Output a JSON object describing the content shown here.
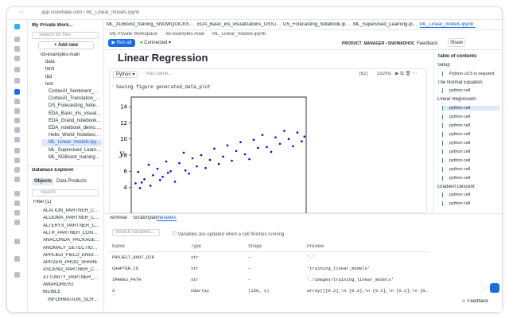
{
  "browser": {
    "url": "app.snowflake.com",
    "path": "/ ML_Linear_models.ipynb"
  },
  "sidebar": {
    "workspace": "My Private Work...",
    "search": "Search for files",
    "add_new": "+ Add new",
    "tree": [
      "nb-examples-main",
      "data",
      "html",
      "tbd",
      "test",
      "CortexAI_Sentiment_Anal...",
      "CortexAI_Translation_SNO...",
      "DS_Forecasting_Notebo...",
      "EDA_Basic_iris_visualization...",
      "EDA_Grand_notebook_170c...",
      "EDA_notebook_demo.ipynb",
      "Hello_World_Notebook.ipy...",
      "ML_Linear_models.ipynb",
      "ML_Supervised_Learning.i...",
      "ML_XGBoost_training_SNO..."
    ],
    "selected": 12,
    "database_explorer": "Database Explorer",
    "db_tabs": [
      "Objects",
      "Data Products"
    ],
    "db_search": "Search",
    "filter": "Filter (1)",
    "databases": [
      "ALATION_PARTNER_CONN...",
      "ALOOMA_PARTNER_CONN...",
      "ALTERYX_PARTNER_CONN...",
      "ALTR_PARTNER_CONNECT",
      "ANACONDA_PACKAGE_SH...",
      "ANOMALY_DETECTION_APP",
      "APPLIED_FIELD_ENGINEER...",
      "APPZEN_PROD_SHARE",
      "ASCEND_PARTNER_CONN...",
      "ATTUNITY_PARTNER_CONN...",
      "AWARDREVU",
      "BIZIBLE",
      "INFORMATION_SCHEMA"
    ]
  },
  "tabs": [
    "ML_XGBoost_training_SNOWQUICKSTART.ipy",
    "EDA_Basic_iris_visualizations_OSS.ipynb",
    "DS_Forecasting_Notebook.ipynb",
    "ML_Supervised_Learning.ipynb",
    "ML_Linear_models.ipynb"
  ],
  "breadcrumb": [
    "My Private Workspace",
    "nb-examples-main",
    "ML_Linear_models.ipynb"
  ],
  "header": {
    "role": "PRODUCT_MANAGER • SNOWADHOC",
    "feedback": "Feedback",
    "share": "Share",
    "run_all": "Run all",
    "connected": "Connected"
  },
  "notebook": {
    "heading": "Linear Regression",
    "language": "Python",
    "name_placeholder": "Add name...",
    "exec_count": "[62]",
    "duration": "332ms",
    "output": "Saving figure generated_data_plot"
  },
  "plot": {
    "type": "scatter",
    "ylabel": "y",
    "color": "#0000ee",
    "xlim": [
      0,
      2
    ],
    "ylim": [
      0,
      15.2
    ],
    "yticks": [
      4,
      6,
      8,
      10,
      12,
      14
    ],
    "x": [
      0.05,
      0.08,
      0.1,
      0.12,
      0.15,
      0.2,
      0.22,
      0.25,
      0.3,
      0.33,
      0.36,
      0.4,
      0.42,
      0.45,
      0.5,
      0.55,
      0.6,
      0.62,
      0.66,
      0.7,
      0.75,
      0.8,
      0.85,
      0.9,
      0.95,
      1.0,
      1.05,
      1.1,
      1.15,
      1.2,
      1.25,
      1.3,
      1.35,
      1.4,
      1.45,
      1.5,
      1.55,
      1.6,
      1.65,
      1.7,
      1.75,
      1.8,
      1.85,
      1.9,
      1.95,
      1.98
    ],
    "y": [
      4.5,
      5.9,
      3.9,
      4.6,
      5.0,
      6.8,
      4.2,
      5.5,
      6.3,
      4.9,
      5.3,
      7.2,
      5.8,
      6.0,
      4.7,
      7.0,
      8.3,
      6.1,
      5.7,
      7.6,
      6.6,
      8.0,
      6.4,
      7.4,
      8.8,
      6.9,
      7.8,
      9.2,
      7.3,
      8.5,
      9.6,
      8.1,
      7.5,
      9.9,
      8.9,
      10.5,
      9.0,
      8.4,
      10.2,
      9.4,
      11.0,
      10.0,
      9.1,
      10.8,
      9.7,
      10.3
    ]
  },
  "panel": {
    "tabs": [
      "Terminal",
      "Scratchpad",
      "Variables"
    ],
    "search": "Search variables...",
    "info": "Variables are updated when a cell finishes running",
    "columns": [
      "Name",
      "Type",
      "Shape",
      "Preview"
    ],
    "rows": [
      [
        "PROJECT_ROOT_DIR",
        "str",
        "–",
        "'.'"
      ],
      [
        "CHAPTER_ID",
        "str",
        "–",
        "'training_linear_models'"
      ],
      [
        "IMAGES_PATH",
        "str",
        "–",
        "'./images/training_linear_models'"
      ],
      [
        "X",
        "ndarray",
        "(150, 1)",
        "array([[0.2],\\n [0.2],\\n [0.2],\\n [0.2],\\n [0.4],\\n [0.2],\\n ..."
      ]
    ],
    "feedback": "Feedback"
  },
  "toc": {
    "title": "Table of contents",
    "sections": [
      {
        "title": "Setup",
        "cells": [
          "Python ≥3.5 is required"
        ]
      },
      {
        "title": "The Normal Equation",
        "cells": [
          "python cell"
        ]
      },
      {
        "title": "Linear Regression",
        "cells": [
          "python cell",
          "python cell",
          "python cell",
          "python cell",
          "python cell",
          "python cell",
          "python cell",
          "python cell",
          "python cell"
        ]
      },
      {
        "title": "Gradient Descent",
        "cells": [
          "python cell",
          "python cell"
        ]
      }
    ],
    "selected": "2.0"
  }
}
